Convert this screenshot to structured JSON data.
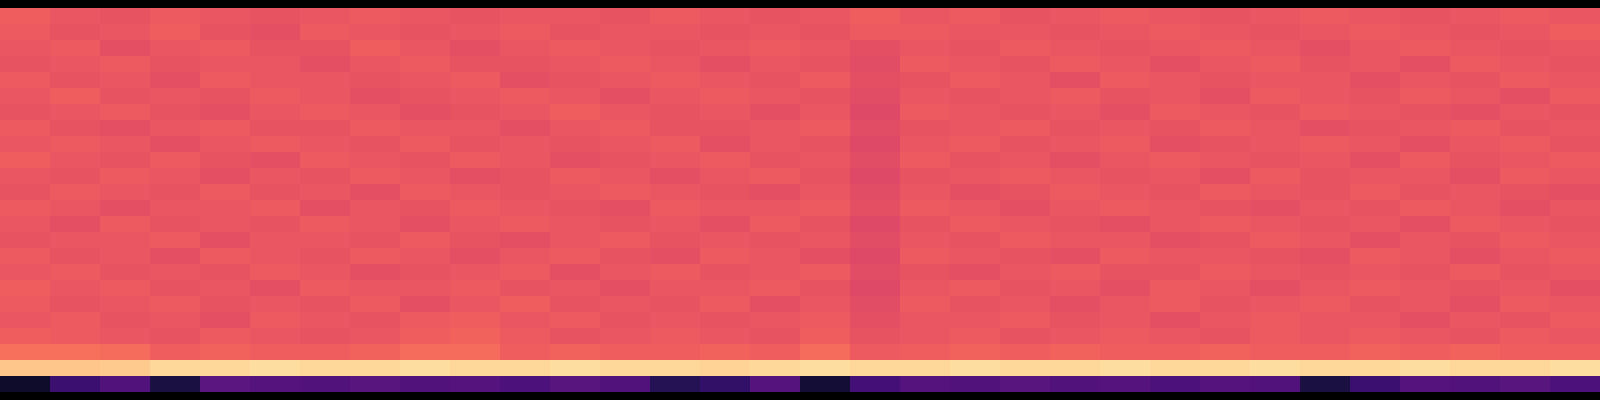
{
  "chart_data": {
    "type": "heatmap",
    "tick_labels": false,
    "color": "magma",
    "zlim": [
      0,
      1
    ],
    "cells": [
      [
        0.66,
        0.64,
        0.63,
        0.65,
        0.64,
        0.63,
        0.64,
        0.65,
        0.64,
        0.63,
        0.64,
        0.64,
        0.63,
        0.65,
        0.64,
        0.63,
        0.64,
        0.66,
        0.64,
        0.65,
        0.63,
        0.64,
        0.65,
        0.64,
        0.63,
        0.64,
        0.65,
        0.64,
        0.63,
        0.64,
        0.65,
        0.64
      ],
      [
        0.65,
        0.63,
        0.64,
        0.66,
        0.63,
        0.62,
        0.65,
        0.64,
        0.63,
        0.64,
        0.65,
        0.63,
        0.64,
        0.64,
        0.63,
        0.64,
        0.63,
        0.65,
        0.65,
        0.64,
        0.64,
        0.63,
        0.64,
        0.65,
        0.64,
        0.63,
        0.64,
        0.65,
        0.64,
        0.63,
        0.64,
        0.66
      ],
      [
        0.64,
        0.65,
        0.62,
        0.64,
        0.65,
        0.63,
        0.63,
        0.66,
        0.64,
        0.62,
        0.64,
        0.65,
        0.64,
        0.63,
        0.64,
        0.65,
        0.64,
        0.62,
        0.64,
        0.63,
        0.65,
        0.64,
        0.63,
        0.64,
        0.65,
        0.64,
        0.62,
        0.64,
        0.65,
        0.64,
        0.63,
        0.64
      ],
      [
        0.63,
        0.64,
        0.65,
        0.63,
        0.64,
        0.64,
        0.62,
        0.64,
        0.65,
        0.63,
        0.63,
        0.64,
        0.65,
        0.64,
        0.62,
        0.64,
        0.63,
        0.61,
        0.65,
        0.64,
        0.63,
        0.65,
        0.64,
        0.62,
        0.64,
        0.65,
        0.63,
        0.64,
        0.62,
        0.65,
        0.64,
        0.63
      ],
      [
        0.65,
        0.63,
        0.64,
        0.62,
        0.65,
        0.64,
        0.64,
        0.63,
        0.64,
        0.65,
        0.62,
        0.63,
        0.64,
        0.65,
        0.64,
        0.63,
        0.65,
        0.62,
        0.63,
        0.65,
        0.64,
        0.62,
        0.65,
        0.64,
        0.63,
        0.64,
        0.64,
        0.62,
        0.64,
        0.63,
        0.65,
        0.64
      ],
      [
        0.64,
        0.66,
        0.63,
        0.64,
        0.63,
        0.65,
        0.64,
        0.62,
        0.63,
        0.64,
        0.65,
        0.64,
        0.62,
        0.64,
        0.65,
        0.64,
        0.63,
        0.61,
        0.64,
        0.63,
        0.64,
        0.65,
        0.63,
        0.64,
        0.62,
        0.65,
        0.64,
        0.63,
        0.65,
        0.64,
        0.62,
        0.65
      ],
      [
        0.63,
        0.64,
        0.65,
        0.63,
        0.62,
        0.64,
        0.65,
        0.64,
        0.62,
        0.63,
        0.64,
        0.66,
        0.64,
        0.63,
        0.64,
        0.62,
        0.64,
        0.6,
        0.65,
        0.64,
        0.63,
        0.64,
        0.62,
        0.65,
        0.64,
        0.63,
        0.65,
        0.64,
        0.63,
        0.62,
        0.64,
        0.63
      ],
      [
        0.65,
        0.63,
        0.62,
        0.64,
        0.65,
        0.63,
        0.63,
        0.65,
        0.64,
        0.64,
        0.62,
        0.64,
        0.65,
        0.63,
        0.63,
        0.64,
        0.65,
        0.61,
        0.63,
        0.64,
        0.65,
        0.63,
        0.64,
        0.63,
        0.65,
        0.64,
        0.62,
        0.63,
        0.64,
        0.65,
        0.63,
        0.64
      ],
      [
        0.64,
        0.65,
        0.64,
        0.62,
        0.64,
        0.65,
        0.64,
        0.63,
        0.65,
        0.63,
        0.64,
        0.63,
        0.64,
        0.65,
        0.62,
        0.64,
        0.63,
        0.6,
        0.64,
        0.65,
        0.63,
        0.64,
        0.65,
        0.62,
        0.63,
        0.64,
        0.65,
        0.64,
        0.62,
        0.64,
        0.65,
        0.63
      ],
      [
        0.66,
        0.64,
        0.63,
        0.65,
        0.63,
        0.62,
        0.65,
        0.64,
        0.63,
        0.65,
        0.64,
        0.62,
        0.63,
        0.64,
        0.65,
        0.63,
        0.64,
        0.61,
        0.65,
        0.63,
        0.64,
        0.62,
        0.64,
        0.65,
        0.64,
        0.63,
        0.64,
        0.62,
        0.65,
        0.63,
        0.64,
        0.65
      ],
      [
        0.64,
        0.63,
        0.65,
        0.64,
        0.62,
        0.64,
        0.63,
        0.65,
        0.64,
        0.62,
        0.63,
        0.65,
        0.64,
        0.62,
        0.64,
        0.65,
        0.63,
        0.6,
        0.63,
        0.64,
        0.65,
        0.64,
        0.63,
        0.64,
        0.62,
        0.65,
        0.63,
        0.64,
        0.64,
        0.62,
        0.65,
        0.64
      ],
      [
        0.63,
        0.65,
        0.64,
        0.63,
        0.65,
        0.63,
        0.64,
        0.62,
        0.65,
        0.64,
        0.63,
        0.64,
        0.65,
        0.64,
        0.63,
        0.62,
        0.64,
        0.61,
        0.64,
        0.62,
        0.63,
        0.65,
        0.64,
        0.63,
        0.65,
        0.64,
        0.63,
        0.65,
        0.63,
        0.64,
        0.63,
        0.62
      ],
      [
        0.65,
        0.64,
        0.62,
        0.64,
        0.64,
        0.65,
        0.62,
        0.64,
        0.63,
        0.65,
        0.64,
        0.63,
        0.62,
        0.65,
        0.64,
        0.64,
        0.65,
        0.62,
        0.65,
        0.64,
        0.62,
        0.64,
        0.65,
        0.64,
        0.63,
        0.62,
        0.64,
        0.63,
        0.65,
        0.64,
        0.62,
        0.64
      ],
      [
        0.64,
        0.62,
        0.65,
        0.63,
        0.64,
        0.63,
        0.65,
        0.64,
        0.62,
        0.64,
        0.65,
        0.64,
        0.63,
        0.64,
        0.62,
        0.65,
        0.63,
        0.6,
        0.63,
        0.65,
        0.64,
        0.63,
        0.62,
        0.64,
        0.65,
        0.64,
        0.63,
        0.64,
        0.62,
        0.65,
        0.64,
        0.63
      ],
      [
        0.63,
        0.64,
        0.64,
        0.65,
        0.62,
        0.64,
        0.64,
        0.63,
        0.65,
        0.63,
        0.62,
        0.64,
        0.65,
        0.63,
        0.64,
        0.63,
        0.64,
        0.61,
        0.64,
        0.63,
        0.65,
        0.64,
        0.64,
        0.62,
        0.63,
        0.65,
        0.64,
        0.62,
        0.64,
        0.63,
        0.65,
        0.64
      ],
      [
        0.65,
        0.63,
        0.64,
        0.62,
        0.65,
        0.64,
        0.63,
        0.65,
        0.64,
        0.62,
        0.64,
        0.65,
        0.63,
        0.62,
        0.65,
        0.64,
        0.62,
        0.6,
        0.65,
        0.64,
        0.63,
        0.62,
        0.65,
        0.64,
        0.64,
        0.63,
        0.62,
        0.65,
        0.64,
        0.62,
        0.64,
        0.65
      ],
      [
        0.64,
        0.65,
        0.63,
        0.64,
        0.63,
        0.65,
        0.64,
        0.62,
        0.63,
        0.64,
        0.65,
        0.62,
        0.64,
        0.65,
        0.63,
        0.64,
        0.65,
        0.61,
        0.63,
        0.62,
        0.64,
        0.65,
        0.63,
        0.63,
        0.65,
        0.64,
        0.63,
        0.64,
        0.63,
        0.65,
        0.63,
        0.64
      ],
      [
        0.66,
        0.64,
        0.65,
        0.63,
        0.64,
        0.62,
        0.65,
        0.64,
        0.64,
        0.65,
        0.63,
        0.64,
        0.62,
        0.64,
        0.64,
        0.65,
        0.63,
        0.6,
        0.64,
        0.65,
        0.63,
        0.64,
        0.62,
        0.65,
        0.64,
        0.62,
        0.64,
        0.65,
        0.64,
        0.63,
        0.64,
        0.62
      ],
      [
        0.65,
        0.63,
        0.64,
        0.65,
        0.63,
        0.64,
        0.63,
        0.65,
        0.62,
        0.64,
        0.66,
        0.63,
        0.64,
        0.63,
        0.65,
        0.62,
        0.64,
        0.61,
        0.65,
        0.63,
        0.64,
        0.62,
        0.64,
        0.65,
        0.63,
        0.64,
        0.65,
        0.63,
        0.64,
        0.62,
        0.65,
        0.64
      ],
      [
        0.64,
        0.65,
        0.63,
        0.64,
        0.62,
        0.65,
        0.64,
        0.63,
        0.65,
        0.66,
        0.64,
        0.65,
        0.63,
        0.64,
        0.63,
        0.64,
        0.65,
        0.62,
        0.64,
        0.64,
        0.65,
        0.63,
        0.64,
        0.62,
        0.64,
        0.65,
        0.64,
        0.64,
        0.62,
        0.64,
        0.63,
        0.65
      ],
      [
        0.66,
        0.65,
        0.64,
        0.63,
        0.65,
        0.64,
        0.63,
        0.64,
        0.66,
        0.67,
        0.65,
        0.63,
        0.64,
        0.65,
        0.64,
        0.63,
        0.66,
        0.63,
        0.64,
        0.65,
        0.63,
        0.64,
        0.65,
        0.64,
        0.63,
        0.65,
        0.64,
        0.65,
        0.64,
        0.63,
        0.65,
        0.64
      ],
      [
        0.7,
        0.7,
        0.69,
        0.66,
        0.67,
        0.66,
        0.66,
        0.67,
        0.69,
        0.69,
        0.66,
        0.67,
        0.66,
        0.66,
        0.67,
        0.66,
        0.69,
        0.65,
        0.66,
        0.67,
        0.66,
        0.67,
        0.66,
        0.66,
        0.67,
        0.66,
        0.66,
        0.67,
        0.66,
        0.67,
        0.66,
        0.66
      ],
      [
        0.88,
        0.88,
        0.89,
        0.92,
        0.92,
        0.93,
        0.92,
        0.92,
        0.93,
        0.92,
        0.92,
        0.93,
        0.92,
        0.92,
        0.91,
        0.92,
        0.93,
        0.92,
        0.92,
        0.93,
        0.92,
        0.92,
        0.93,
        0.92,
        0.92,
        0.93,
        0.92,
        0.92,
        0.93,
        0.92,
        0.92,
        0.93
      ],
      [
        0.08,
        0.2,
        0.25,
        0.12,
        0.28,
        0.26,
        0.25,
        0.27,
        0.25,
        0.26,
        0.24,
        0.27,
        0.25,
        0.15,
        0.18,
        0.26,
        0.1,
        0.22,
        0.26,
        0.25,
        0.27,
        0.25,
        0.26,
        0.24,
        0.26,
        0.25,
        0.12,
        0.2,
        0.26,
        0.25,
        0.27,
        0.24
      ]
    ]
  }
}
